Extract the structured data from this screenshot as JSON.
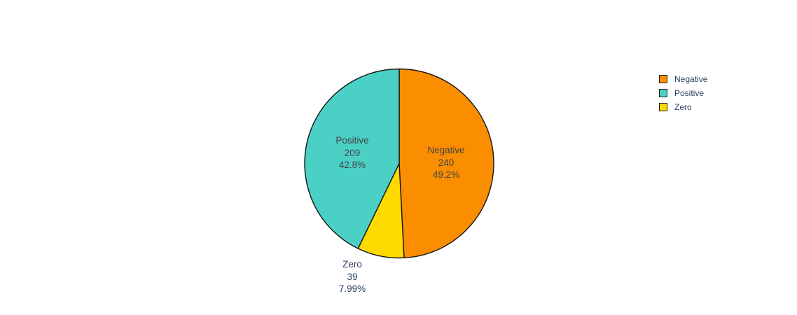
{
  "chart_data": {
    "type": "pie",
    "title": "",
    "labels": [
      "Negative",
      "Positive",
      "Zero"
    ],
    "values": [
      240,
      209,
      39
    ],
    "percent_labels": [
      "49.2%",
      "42.8%",
      "7.99%"
    ],
    "colors": [
      "#FB8D00",
      "#4BD0C6",
      "#FFDA00"
    ],
    "slice_border_color": "#151515",
    "draw_order_clockwise_from_top": [
      0,
      2,
      1
    ],
    "label_placement": [
      "inside",
      "inside",
      "outside"
    ],
    "background": "#ffffff",
    "legend": {
      "position": "right",
      "items": [
        {
          "label": "Negative",
          "color": "#FB8D00"
        },
        {
          "label": "Positive",
          "color": "#4BD0C6"
        },
        {
          "label": "Zero",
          "color": "#FFDA00"
        }
      ]
    }
  }
}
